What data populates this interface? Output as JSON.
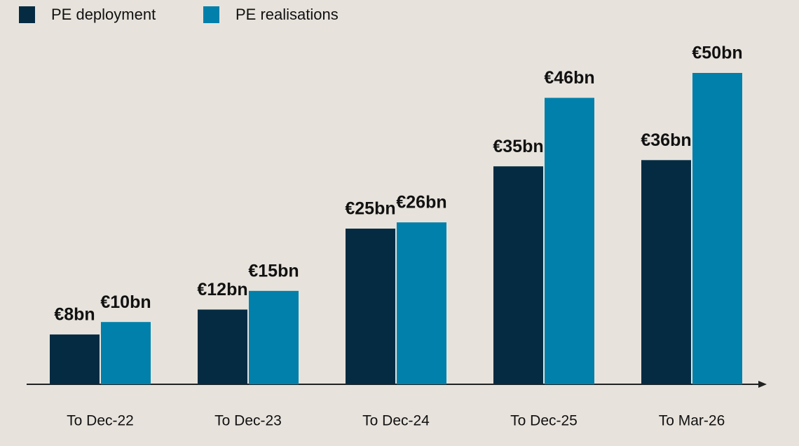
{
  "chart_data": {
    "type": "bar",
    "categories": [
      "To Dec-22",
      "To Dec-23",
      "To Dec-24",
      "To Dec-25",
      "To Mar-26"
    ],
    "series": [
      {
        "name": "PE deployment",
        "color": "#052b42",
        "values": [
          8,
          12,
          25,
          35,
          36
        ],
        "value_labels": [
          "€8bn",
          "€12bn",
          "€25bn",
          "€35bn",
          "€36bn"
        ]
      },
      {
        "name": "PE realisations",
        "color": "#0080aa",
        "values": [
          10,
          15,
          26,
          46,
          50
        ],
        "value_labels": [
          "€10bn",
          "€15bn",
          "€26bn",
          "€46bn",
          "€50bn"
        ]
      }
    ],
    "legend": "top-left"
  }
}
